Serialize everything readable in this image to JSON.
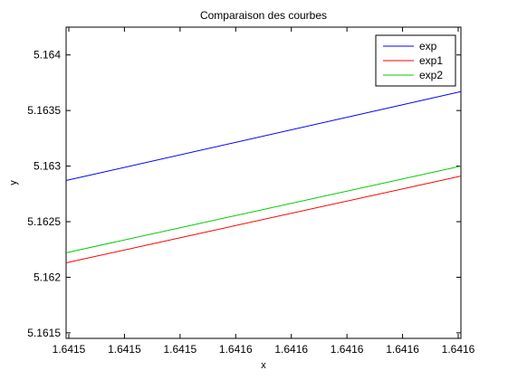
{
  "chart_data": {
    "type": "line",
    "title": "Comparaison des courbes",
    "xlabel": "x",
    "ylabel": "y",
    "xlim": [
      0,
      1
    ],
    "ylim": [
      5.16145,
      5.16425
    ],
    "x_tick_labels": [
      "1.6415",
      "1.6415",
      "1.6415",
      "1.6416",
      "1.6416",
      "1.6416",
      "1.6416",
      "1.6416"
    ],
    "y_ticks": [
      5.1615,
      5.162,
      5.1625,
      5.163,
      5.1635,
      5.164
    ],
    "y_tick_labels": [
      "5.1615",
      "5.162",
      "5.1625",
      "5.163",
      "5.1635",
      "5.164"
    ],
    "grid": false,
    "legend_position": "top-right",
    "series": [
      {
        "name": "exp",
        "color": "#0000ff",
        "x": [
          0,
          1
        ],
        "y": [
          5.16287,
          5.16367
        ]
      },
      {
        "name": "exp1",
        "color": "#ff0000",
        "x": [
          0,
          1
        ],
        "y": [
          5.16213,
          5.16291
        ]
      },
      {
        "name": "exp2",
        "color": "#00cc00",
        "x": [
          0,
          1
        ],
        "y": [
          5.16222,
          5.163
        ]
      }
    ]
  }
}
